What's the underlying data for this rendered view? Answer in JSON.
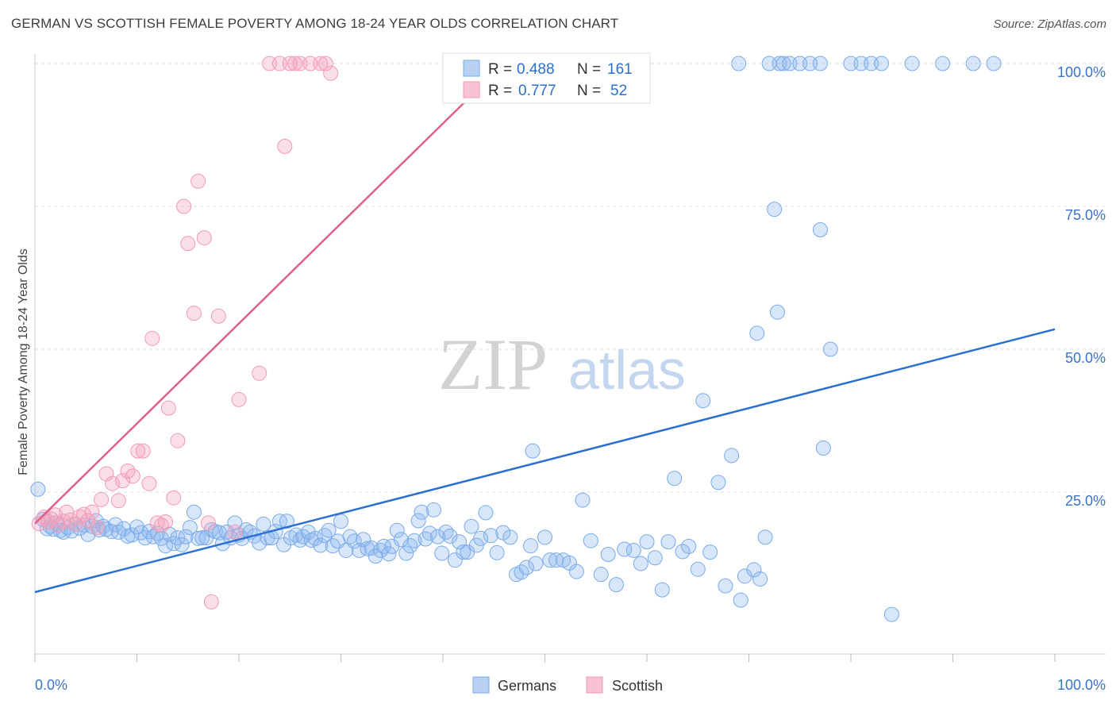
{
  "header": {
    "title": "GERMAN VS SCOTTISH FEMALE POVERTY AMONG 18-24 YEAR OLDS CORRELATION CHART",
    "source": "Source: ZipAtlas.com"
  },
  "watermark": {
    "zip": "ZIP",
    "atlas": "atlas"
  },
  "chart_data": {
    "type": "scatter",
    "ylabel": "Female Poverty Among 18-24 Year Olds",
    "xlabel": "",
    "xlim": [
      0,
      100
    ],
    "ylim": [
      0,
      100
    ],
    "x_tick_labels": [
      "0.0%",
      "100.0%"
    ],
    "y_tick_labels": [
      "25.0%",
      "50.0%",
      "75.0%",
      "100.0%"
    ],
    "y_ticks": [
      25,
      50,
      75,
      100
    ],
    "grid": "horizontal dashed",
    "legend_position": "top-center",
    "colors": {
      "germans": "#7aaae8",
      "scottish": "#f19ab6",
      "germans_line": "#2a6fd0",
      "scottish_line": "#e0608a"
    },
    "stats": [
      {
        "r_label": "R = ",
        "r_value": "0.488",
        "n_label": "N = ",
        "n_value": "161"
      },
      {
        "r_label": "R = ",
        "r_value": "0.777",
        "n_label": "N = ",
        "n_value": "52"
      }
    ],
    "series": [
      {
        "name": "Germans",
        "trend": {
          "x": [
            0,
            100
          ],
          "y": [
            7.5,
            53.5
          ]
        },
        "points": [
          [
            0.3,
            25.5
          ],
          [
            0.8,
            20.2
          ],
          [
            1.2,
            18.6
          ],
          [
            1.5,
            19.0
          ],
          [
            1.8,
            18.5
          ],
          [
            2.1,
            19.6
          ],
          [
            2.5,
            18.3
          ],
          [
            2.8,
            18.0
          ],
          [
            3.2,
            18.8
          ],
          [
            3.6,
            18.2
          ],
          [
            4.0,
            19.4
          ],
          [
            4.4,
            18.7
          ],
          [
            4.8,
            19.2
          ],
          [
            5.2,
            17.6
          ],
          [
            5.6,
            19.0
          ],
          [
            6.0,
            20.0
          ],
          [
            6.3,
            18.4
          ],
          [
            6.7,
            19.0
          ],
          [
            7.0,
            18.5
          ],
          [
            7.5,
            18.1
          ],
          [
            7.9,
            19.3
          ],
          [
            8.2,
            18.0
          ],
          [
            8.7,
            18.6
          ],
          [
            9.1,
            17.3
          ],
          [
            9.5,
            17.5
          ],
          [
            10.0,
            18.9
          ],
          [
            10.4,
            17.9
          ],
          [
            10.8,
            17.0
          ],
          [
            11.2,
            18.1
          ],
          [
            11.6,
            17.2
          ],
          [
            12.0,
            17.8
          ],
          [
            12.4,
            16.9
          ],
          [
            12.8,
            15.6
          ],
          [
            13.2,
            17.6
          ],
          [
            13.6,
            16.0
          ],
          [
            14.0,
            17.0
          ],
          [
            14.4,
            15.8
          ],
          [
            14.8,
            17.2
          ],
          [
            15.2,
            18.8
          ],
          [
            15.6,
            21.5
          ],
          [
            16.0,
            16.9
          ],
          [
            16.4,
            17.0
          ],
          [
            16.8,
            17.0
          ],
          [
            17.3,
            18.4
          ],
          [
            17.7,
            18.1
          ],
          [
            18.1,
            17.9
          ],
          [
            18.4,
            16.0
          ],
          [
            18.8,
            18.0
          ],
          [
            19.2,
            17.0
          ],
          [
            19.6,
            19.6
          ],
          [
            20.0,
            17.5
          ],
          [
            20.3,
            16.9
          ],
          [
            20.7,
            18.4
          ],
          [
            21.1,
            18.0
          ],
          [
            21.5,
            17.3
          ],
          [
            22.0,
            16.1
          ],
          [
            22.4,
            19.4
          ],
          [
            22.8,
            17.0
          ],
          [
            23.2,
            17.0
          ],
          [
            23.6,
            18.1
          ],
          [
            24.0,
            19.9
          ],
          [
            24.4,
            15.8
          ],
          [
            24.7,
            19.9
          ],
          [
            25.1,
            17.0
          ],
          [
            25.6,
            17.5
          ],
          [
            26.0,
            16.6
          ],
          [
            26.3,
            17.2
          ],
          [
            26.8,
            18.0
          ],
          [
            27.1,
            16.6
          ],
          [
            27.5,
            16.9
          ],
          [
            28.0,
            15.7
          ],
          [
            28.4,
            17.4
          ],
          [
            28.8,
            18.3
          ],
          [
            29.2,
            15.6
          ],
          [
            29.7,
            16.4
          ],
          [
            30.0,
            19.9
          ],
          [
            30.5,
            14.8
          ],
          [
            30.9,
            17.2
          ],
          [
            31.3,
            16.4
          ],
          [
            31.8,
            14.8
          ],
          [
            32.2,
            16.7
          ],
          [
            32.6,
            15.1
          ],
          [
            33.0,
            15.2
          ],
          [
            33.4,
            13.8
          ],
          [
            33.9,
            14.8
          ],
          [
            34.2,
            15.5
          ],
          [
            34.7,
            14.2
          ],
          [
            35.0,
            15.5
          ],
          [
            35.5,
            18.3
          ],
          [
            35.9,
            16.7
          ],
          [
            36.4,
            14.3
          ],
          [
            36.8,
            15.6
          ],
          [
            37.2,
            16.5
          ],
          [
            37.6,
            20.0
          ],
          [
            37.9,
            21.5
          ],
          [
            38.3,
            16.8
          ],
          [
            38.7,
            17.8
          ],
          [
            39.1,
            21.9
          ],
          [
            39.5,
            17.2
          ],
          [
            39.9,
            14.3
          ],
          [
            40.3,
            18.0
          ],
          [
            40.7,
            17.3
          ],
          [
            41.2,
            13.1
          ],
          [
            41.6,
            16.3
          ],
          [
            42.0,
            14.5
          ],
          [
            42.4,
            14.5
          ],
          [
            42.8,
            19.0
          ],
          [
            43.3,
            15.7
          ],
          [
            43.7,
            16.9
          ],
          [
            44.2,
            21.4
          ],
          [
            44.7,
            17.4
          ],
          [
            45.3,
            14.4
          ],
          [
            45.9,
            17.9
          ],
          [
            46.6,
            17.1
          ],
          [
            47.2,
            10.6
          ],
          [
            47.7,
            11.0
          ],
          [
            48.2,
            11.8
          ],
          [
            48.6,
            15.6
          ],
          [
            48.8,
            32.2
          ],
          [
            49.1,
            12.5
          ],
          [
            50.0,
            17.1
          ],
          [
            50.5,
            13.1
          ],
          [
            51.1,
            13.1
          ],
          [
            51.8,
            13.1
          ],
          [
            52.4,
            12.6
          ],
          [
            53.1,
            11.1
          ],
          [
            53.7,
            23.6
          ],
          [
            54.5,
            16.5
          ],
          [
            55.5,
            10.6
          ],
          [
            56.2,
            14.1
          ],
          [
            57.0,
            8.8
          ],
          [
            57.8,
            15.0
          ],
          [
            58.7,
            14.8
          ],
          [
            59.4,
            12.5
          ],
          [
            60.0,
            16.3
          ],
          [
            60.8,
            13.5
          ],
          [
            61.5,
            7.9
          ],
          [
            62.1,
            16.3
          ],
          [
            62.7,
            27.4
          ],
          [
            63.5,
            14.6
          ],
          [
            64.1,
            15.5
          ],
          [
            65.0,
            11.5
          ],
          [
            65.5,
            41.0
          ],
          [
            66.2,
            14.5
          ],
          [
            67.0,
            26.7
          ],
          [
            67.7,
            8.6
          ],
          [
            68.3,
            31.4
          ],
          [
            69.2,
            6.1
          ],
          [
            69.6,
            10.3
          ],
          [
            70.5,
            11.4
          ],
          [
            70.8,
            52.8
          ],
          [
            71.1,
            9.8
          ],
          [
            71.6,
            17.1
          ],
          [
            72.5,
            74.5
          ],
          [
            72.8,
            56.5
          ],
          [
            77.0,
            70.9
          ],
          [
            78.0,
            50.0
          ],
          [
            77.3,
            32.7
          ],
          [
            84.0,
            3.6
          ],
          [
            69.0,
            100
          ],
          [
            72.0,
            100
          ],
          [
            73.0,
            100
          ],
          [
            73.4,
            100
          ],
          [
            74.0,
            100
          ],
          [
            75.0,
            100
          ],
          [
            76.0,
            100
          ],
          [
            77.0,
            100
          ],
          [
            80.0,
            100
          ],
          [
            81.0,
            100
          ],
          [
            82.0,
            100
          ],
          [
            83.0,
            100
          ],
          [
            86.0,
            100
          ],
          [
            89.0,
            100
          ],
          [
            92.0,
            100
          ],
          [
            94.0,
            100
          ]
        ]
      },
      {
        "name": "Scottish",
        "trend": {
          "x": [
            0,
            46
          ],
          "y": [
            19.5,
            100
          ]
        },
        "points": [
          [
            0.4,
            19.5
          ],
          [
            0.9,
            20.6
          ],
          [
            1.3,
            19.8
          ],
          [
            1.6,
            20.3
          ],
          [
            2.0,
            21.0
          ],
          [
            2.3,
            19.2
          ],
          [
            2.8,
            19.9
          ],
          [
            3.1,
            21.5
          ],
          [
            3.5,
            20.1
          ],
          [
            4.0,
            19.4
          ],
          [
            4.4,
            20.7
          ],
          [
            4.8,
            21.1
          ],
          [
            5.2,
            20.0
          ],
          [
            5.6,
            21.5
          ],
          [
            6.1,
            18.8
          ],
          [
            6.5,
            23.7
          ],
          [
            7.0,
            28.2
          ],
          [
            7.6,
            26.5
          ],
          [
            8.2,
            23.5
          ],
          [
            8.6,
            27.0
          ],
          [
            9.1,
            28.7
          ],
          [
            9.6,
            27.8
          ],
          [
            10.1,
            32.2
          ],
          [
            10.6,
            32.2
          ],
          [
            11.2,
            26.5
          ],
          [
            11.5,
            51.9
          ],
          [
            12.0,
            19.6
          ],
          [
            12.4,
            19.2
          ],
          [
            12.8,
            19.8
          ],
          [
            13.1,
            39.7
          ],
          [
            13.6,
            24.0
          ],
          [
            14.0,
            34.0
          ],
          [
            14.6,
            75.0
          ],
          [
            15.0,
            68.5
          ],
          [
            15.6,
            56.3
          ],
          [
            16.0,
            79.4
          ],
          [
            16.6,
            69.5
          ],
          [
            17.0,
            19.6
          ],
          [
            17.3,
            5.8
          ],
          [
            18.0,
            55.8
          ],
          [
            19.6,
            18.0
          ],
          [
            20.0,
            41.2
          ],
          [
            22.0,
            45.8
          ],
          [
            23.0,
            100
          ],
          [
            24.0,
            100
          ],
          [
            24.5,
            85.5
          ],
          [
            25.0,
            100
          ],
          [
            25.5,
            100
          ],
          [
            26.0,
            100
          ],
          [
            27.0,
            100
          ],
          [
            28.0,
            100
          ],
          [
            28.5,
            100
          ],
          [
            29.0,
            98.3
          ],
          [
            57.0,
            100
          ]
        ]
      }
    ]
  }
}
